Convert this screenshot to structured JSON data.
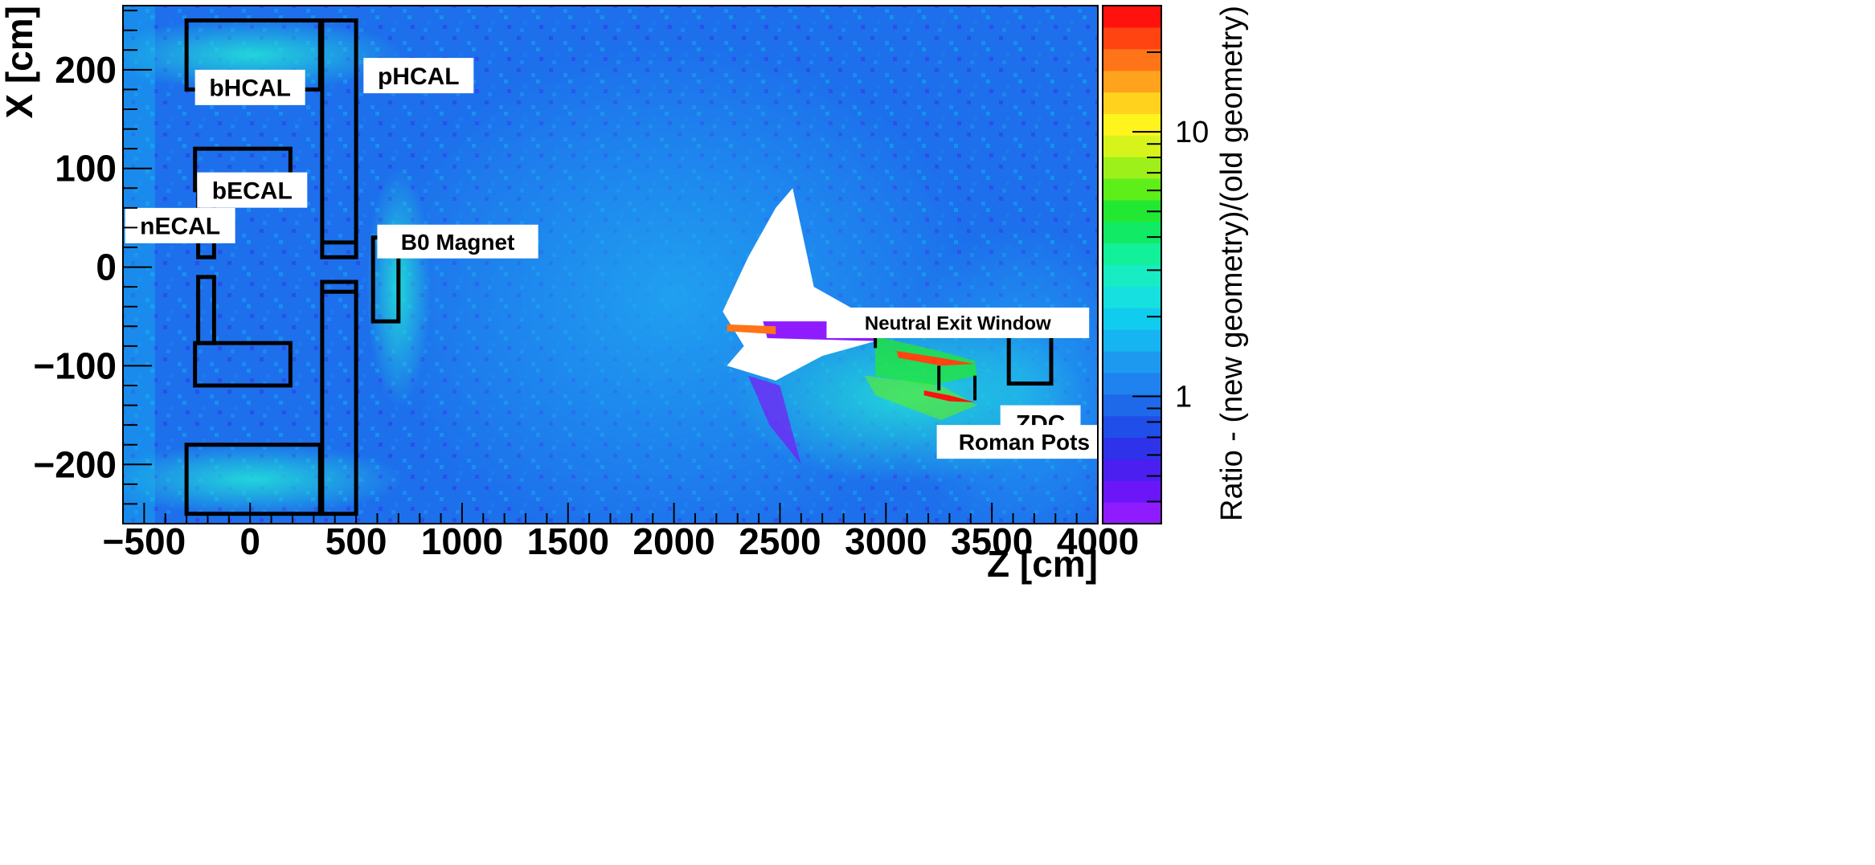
{
  "chart_data": {
    "type": "heatmap",
    "xlabel": "Z [cm]",
    "ylabel": "X [cm]",
    "colorbar_label": "Ratio - (new geometry)/(old geometry)",
    "xlim": [
      -600,
      4000
    ],
    "ylim": [
      -260,
      265
    ],
    "x_ticks": [
      -500,
      0,
      500,
      1000,
      1500,
      2000,
      2500,
      3000,
      3500,
      4000
    ],
    "x_tick_labels": [
      "−500",
      "0",
      "500",
      "1000",
      "1500",
      "2000",
      "2500",
      "3000",
      "3500",
      "4000"
    ],
    "y_ticks": [
      -200,
      -100,
      0,
      100,
      200
    ],
    "y_tick_labels": [
      "−200",
      "−100",
      "0",
      "100",
      "200"
    ],
    "color_scale": "log",
    "colorbar_range": [
      0.33,
      30
    ],
    "colorbar_ticks": [
      1,
      10
    ],
    "colorbar_tick_labels": [
      "1",
      "10"
    ],
    "colorbar_colors": [
      "#8f1cff",
      "#6a16f8",
      "#4a1ff0",
      "#2e33ea",
      "#1f4ee8",
      "#1e68ea",
      "#1f82ee",
      "#1d9af0",
      "#16b4f0",
      "#10ccee",
      "#16e0e0",
      "#18ecc2",
      "#12f09a",
      "#10ea64",
      "#22e832",
      "#5eee1a",
      "#9ef01a",
      "#d6f41c",
      "#fff41e",
      "#ffd21e",
      "#ffa21c",
      "#ff7418",
      "#ff4412",
      "#ff120e"
    ],
    "background_ratio": 0.85,
    "detector_regions": [
      {
        "name": "bHCAL",
        "z": [
          -300,
          330
        ],
        "x": [
          180,
          250
        ]
      },
      {
        "name": "bHCAL",
        "z": [
          -300,
          330
        ],
        "x": [
          -250,
          -180
        ]
      },
      {
        "name": "pHCAL",
        "z": [
          340,
          500
        ],
        "x": [
          10,
          250
        ]
      },
      {
        "name": "pHCAL",
        "z": [
          340,
          500
        ],
        "x": [
          -250,
          -15
        ]
      },
      {
        "name": "bECAL",
        "z": [
          -260,
          190
        ],
        "x": [
          78,
          120
        ]
      },
      {
        "name": "bECAL",
        "z": [
          -260,
          190
        ],
        "x": [
          -120,
          -77
        ]
      },
      {
        "name": "nECAL",
        "z": [
          -245,
          -170
        ],
        "x": [
          10,
          78
        ]
      },
      {
        "name": "nECAL",
        "z": [
          -245,
          -170
        ],
        "x": [
          -77,
          -10
        ]
      },
      {
        "name": "B0 Magnet",
        "z": [
          580,
          700
        ],
        "x": [
          -55,
          30
        ]
      },
      {
        "name": "ZDC",
        "z": [
          3580,
          3780
        ],
        "x": [
          -118,
          -58
        ]
      }
    ],
    "annotations": [
      {
        "text": "bHCAL",
        "z": -260,
        "x": 200
      },
      {
        "text": "pHCAL",
        "z": 535,
        "x": 212
      },
      {
        "text": "bECAL",
        "z": -250,
        "x": 96
      },
      {
        "text": "nECAL",
        "z": -590,
        "x": 60
      },
      {
        "text": "B0 Magnet",
        "z": 600,
        "x": 43
      },
      {
        "text": "Neutral Exit Window",
        "z": 2720,
        "x": -41
      },
      {
        "text": "ZDC",
        "z": 3540,
        "x": -140
      },
      {
        "text": "Roman Pots",
        "z": 3240,
        "x": -160
      }
    ]
  }
}
